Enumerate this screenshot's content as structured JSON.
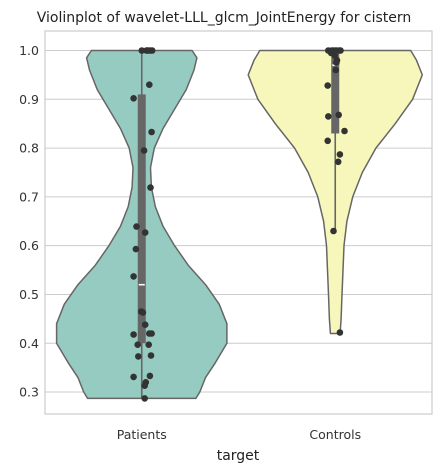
{
  "chart_data": {
    "type": "violin",
    "title": "Violinplot of wavelet-LLL_glcm_JointEnergy for cistern",
    "xlabel": "target",
    "ylabel": "",
    "ylim": [
      0.255,
      1.04
    ],
    "yticks": [
      0.3,
      0.4,
      0.5,
      0.6,
      0.7,
      0.8,
      0.9,
      1.0
    ],
    "ytick_labels": [
      "0.3",
      "0.4",
      "0.5",
      "0.6",
      "0.7",
      "0.8",
      "0.9",
      "1.0"
    ],
    "grid": true,
    "categories": [
      "Patients",
      "Controls"
    ],
    "colors": {
      "Patients": "#96cbc1",
      "Controls": "#f7f7bb",
      "outline": "#666666",
      "box": "#666666",
      "median": "#ffffff",
      "points": "#333333"
    },
    "series": [
      {
        "category": "Patients",
        "min": 0.287,
        "q1": 0.4,
        "median": 0.52,
        "q3": 0.91,
        "max": 1.0,
        "density": [
          [
            0.287,
            0.28
          ],
          [
            0.3,
            0.3
          ],
          [
            0.33,
            0.33
          ],
          [
            0.36,
            0.38
          ],
          [
            0.4,
            0.44
          ],
          [
            0.44,
            0.44
          ],
          [
            0.48,
            0.4
          ],
          [
            0.52,
            0.33
          ],
          [
            0.56,
            0.24
          ],
          [
            0.6,
            0.17
          ],
          [
            0.64,
            0.11
          ],
          [
            0.68,
            0.07
          ],
          [
            0.72,
            0.05
          ],
          [
            0.76,
            0.045
          ],
          [
            0.8,
            0.065
          ],
          [
            0.84,
            0.11
          ],
          [
            0.88,
            0.17
          ],
          [
            0.92,
            0.23
          ],
          [
            0.96,
            0.27
          ],
          [
            0.985,
            0.285
          ],
          [
            1.0,
            0.26
          ]
        ],
        "points": [
          [
            0.0,
            1.0
          ],
          [
            0.08,
            1.0
          ],
          [
            0.1,
            1.0
          ],
          [
            0.12,
            1.0
          ],
          [
            0.15,
            1.0
          ],
          [
            0.18,
            1.0
          ],
          [
            0.13,
            0.93
          ],
          [
            -0.14,
            0.902
          ],
          [
            0.17,
            0.833
          ],
          [
            0.04,
            0.795
          ],
          [
            0.15,
            0.719
          ],
          [
            -0.09,
            0.639
          ],
          [
            0.06,
            0.627
          ],
          [
            -0.1,
            0.593
          ],
          [
            -0.14,
            0.537
          ],
          [
            -0.01,
            0.465
          ],
          [
            0.02,
            0.463
          ],
          [
            0.06,
            0.438
          ],
          [
            0.13,
            0.42
          ],
          [
            0.17,
            0.42
          ],
          [
            -0.14,
            0.418
          ],
          [
            0.12,
            0.397
          ],
          [
            -0.07,
            0.397
          ],
          [
            0.16,
            0.375
          ],
          [
            -0.06,
            0.373
          ],
          [
            0.14,
            0.333
          ],
          [
            -0.14,
            0.331
          ],
          [
            0.07,
            0.32
          ],
          [
            0.05,
            0.313
          ],
          [
            0.05,
            0.287
          ]
        ]
      },
      {
        "category": "Controls",
        "min": 0.63,
        "q1": 0.83,
        "median": 0.97,
        "q3": 1.0,
        "max": 1.0,
        "cut_low": 0.42,
        "density": [
          [
            0.42,
            0.025
          ],
          [
            0.45,
            0.03
          ],
          [
            0.5,
            0.035
          ],
          [
            0.55,
            0.04
          ],
          [
            0.6,
            0.045
          ],
          [
            0.65,
            0.06
          ],
          [
            0.7,
            0.09
          ],
          [
            0.75,
            0.14
          ],
          [
            0.8,
            0.21
          ],
          [
            0.85,
            0.31
          ],
          [
            0.9,
            0.4
          ],
          [
            0.95,
            0.45
          ],
          [
            0.98,
            0.42
          ],
          [
            1.0,
            0.39
          ]
        ],
        "points": [
          [
            -0.12,
            1.0
          ],
          [
            -0.06,
            1.0
          ],
          [
            -0.03,
            1.0
          ],
          [
            0.0,
            1.0
          ],
          [
            0.03,
            1.0
          ],
          [
            0.07,
            1.0
          ],
          [
            0.09,
            1.0
          ],
          [
            -0.07,
            0.995
          ],
          [
            -0.01,
            0.99
          ],
          [
            0.03,
            0.98
          ],
          [
            0.02,
            0.975
          ],
          [
            0.01,
            0.96
          ],
          [
            -0.13,
            0.928
          ],
          [
            0.06,
            0.868
          ],
          [
            -0.12,
            0.865
          ],
          [
            0.16,
            0.835
          ],
          [
            -0.13,
            0.815
          ],
          [
            0.08,
            0.787
          ],
          [
            0.05,
            0.772
          ],
          [
            -0.03,
            0.63
          ],
          [
            0.08,
            0.422
          ]
        ]
      }
    ]
  }
}
